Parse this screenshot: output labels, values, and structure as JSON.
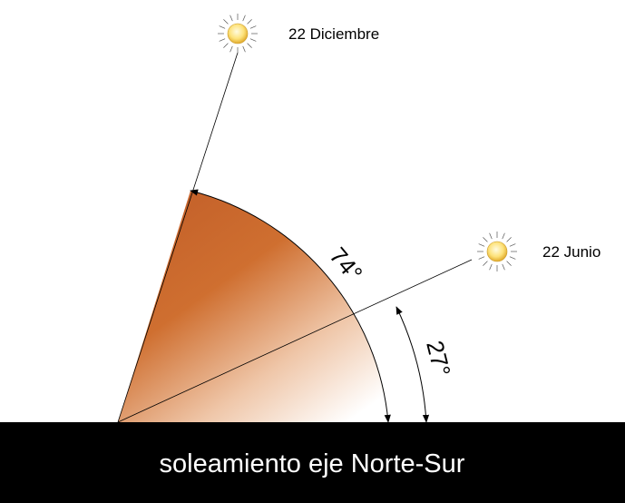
{
  "labels": {
    "december": "22 Diciembre",
    "june": "22 Junio",
    "angle_large": "74°",
    "angle_small": "27°"
  },
  "caption": "soleamiento eje Norte-Sur"
}
